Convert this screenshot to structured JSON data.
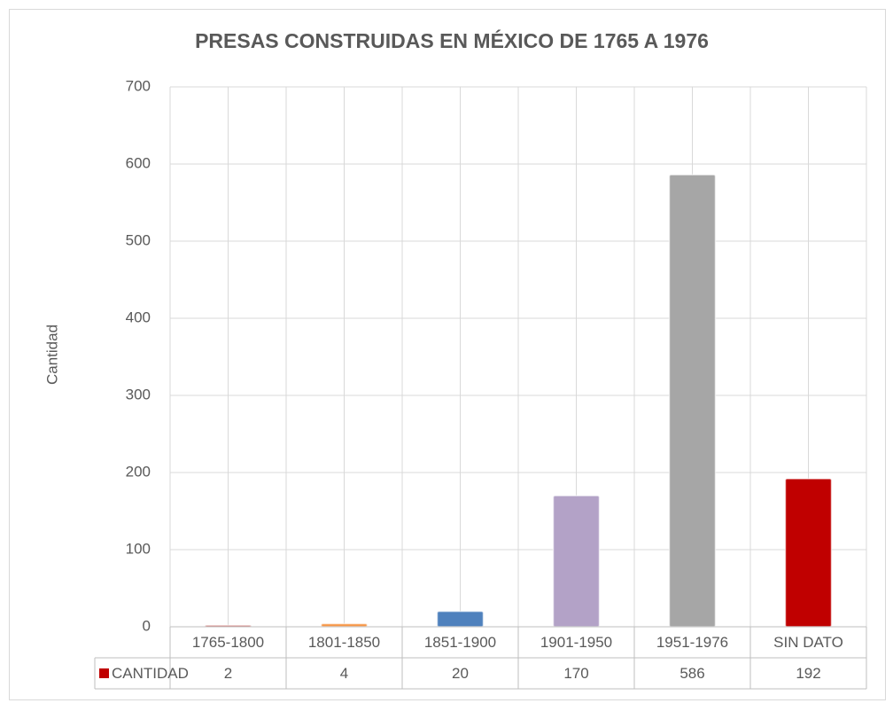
{
  "chart_data": {
    "type": "bar",
    "title": "PRESAS  CONSTRUIDAS EN MÉXICO DE 1765 A 1976",
    "y_label": "Cantidad",
    "categories": [
      "1765-1800",
      "1801-1850",
      "1851-1900",
      "1901-1950",
      "1951-1976",
      "SIN DATO"
    ],
    "series": [
      {
        "name": "CANTIDAD",
        "color": "#c00000",
        "colors": [
          "#c0504d",
          "#f79646",
          "#4f81bd",
          "#b3a2c7",
          "#a6a6a6",
          "#c00000"
        ],
        "values": [
          2,
          4,
          20,
          170,
          586,
          192
        ]
      }
    ],
    "ylim": [
      0,
      700
    ],
    "yticks": [
      0,
      100,
      200,
      300,
      400,
      500,
      600,
      700
    ],
    "grid": true,
    "data_table": true
  }
}
